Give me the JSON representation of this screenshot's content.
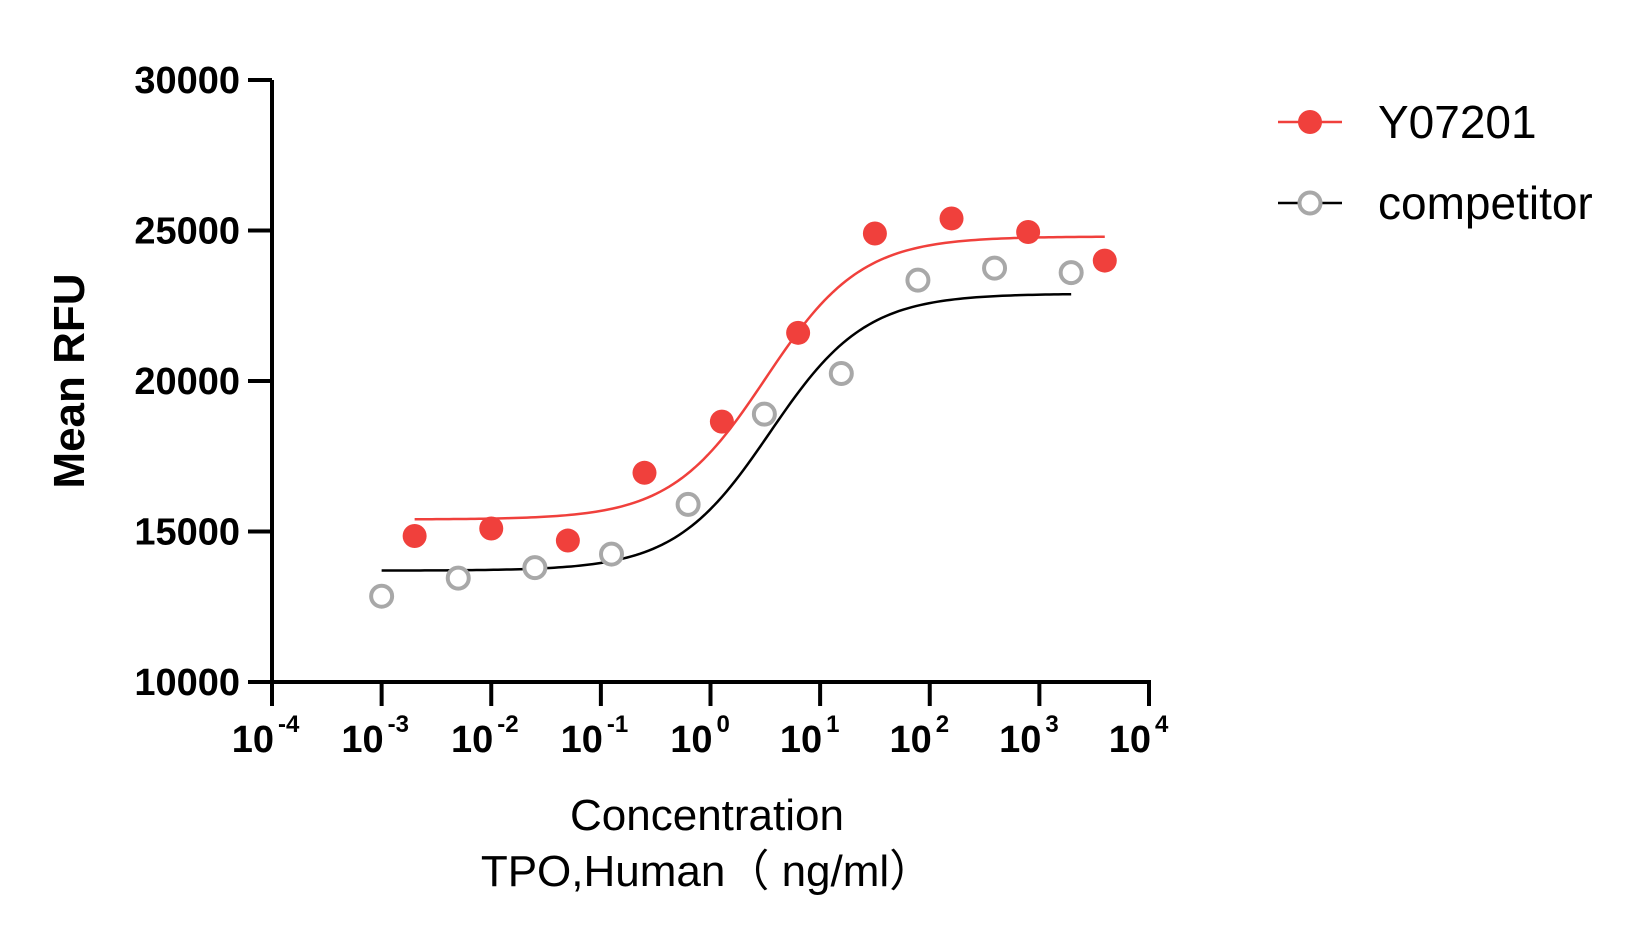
{
  "chart_data": {
    "type": "scatter",
    "title": "",
    "xlabel": "Concentration",
    "xlabel_line2": "TPO,Human（ ng/ml）",
    "ylabel": "Mean RFU",
    "xscale": "log10",
    "xlim": [
      0.0001,
      10000
    ],
    "ylim": [
      10000,
      30000
    ],
    "yticks": [
      10000,
      15000,
      20000,
      25000,
      30000
    ],
    "yticklabels": [
      "10000",
      "15000",
      "20000",
      "25000",
      "30000"
    ],
    "xticks": [
      0.0001,
      0.001,
      0.01,
      0.1,
      1,
      10,
      100,
      1000,
      10000
    ],
    "xticklabels": [
      {
        "base": "10",
        "exp": "-4"
      },
      {
        "base": "10",
        "exp": "-3"
      },
      {
        "base": "10",
        "exp": "-2"
      },
      {
        "base": "10",
        "exp": "-1"
      },
      {
        "base": "10",
        "exp": "0"
      },
      {
        "base": "10",
        "exp": "1"
      },
      {
        "base": "10",
        "exp": "2"
      },
      {
        "base": "10",
        "exp": "3"
      },
      {
        "base": "10",
        "exp": "4"
      }
    ],
    "legend_position": "top-right",
    "grid": false,
    "series": [
      {
        "name": "Y07201",
        "color": "#f0403c",
        "marker": "filled-circle",
        "x": [
          0.002,
          0.01,
          0.05,
          0.25,
          1.27,
          6.3,
          31.6,
          158,
          790,
          3950
        ],
        "y": [
          14850,
          15100,
          14700,
          16950,
          18650,
          21600,
          24900,
          25400,
          24950,
          24000
        ],
        "fit": {
          "bottom": 15400,
          "top": 24800,
          "ec50": 3.2,
          "hill": 1.0,
          "x_range": [
            0.002,
            3950
          ]
        }
      },
      {
        "name": "competitor",
        "color": "#a8a8a8",
        "line_color": "#000000",
        "marker": "open-circle",
        "x": [
          0.001,
          0.005,
          0.025,
          0.125,
          0.625,
          3.1,
          15.6,
          78,
          390,
          1950
        ],
        "y": [
          12850,
          13450,
          13800,
          14250,
          15900,
          18900,
          20250,
          23350,
          23750,
          23600
        ],
        "fit": {
          "bottom": 13700,
          "top": 22900,
          "ec50": 3.5,
          "hill": 1.0,
          "x_range": [
            0.001,
            1950
          ]
        }
      }
    ]
  }
}
